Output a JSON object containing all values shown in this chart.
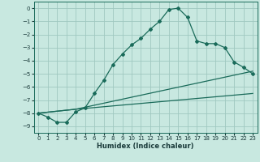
{
  "xlabel": "Humidex (Indice chaleur)",
  "bg_color": "#c8e8e0",
  "grid_color": "#a0c8c0",
  "line_color": "#1a6b5a",
  "xlim": [
    -0.5,
    23.5
  ],
  "ylim": [
    -9.5,
    0.5
  ],
  "xticks": [
    0,
    1,
    2,
    3,
    4,
    5,
    6,
    7,
    8,
    9,
    10,
    11,
    12,
    13,
    14,
    15,
    16,
    17,
    18,
    19,
    20,
    21,
    22,
    23
  ],
  "yticks": [
    0,
    -1,
    -2,
    -3,
    -4,
    -5,
    -6,
    -7,
    -8,
    -9
  ],
  "line1_x": [
    0,
    1,
    2,
    3,
    4,
    5,
    6,
    7,
    8,
    9,
    10,
    11,
    12,
    13,
    14,
    15,
    16,
    17,
    18,
    19,
    20,
    21,
    22,
    23
  ],
  "line1_y": [
    -8.0,
    -8.3,
    -8.7,
    -8.7,
    -7.9,
    -7.6,
    -6.5,
    -5.5,
    -4.3,
    -3.5,
    -2.8,
    -2.3,
    -1.6,
    -1.0,
    -0.1,
    0.0,
    -0.7,
    -2.5,
    -2.7,
    -2.7,
    -3.0,
    -4.1,
    -4.5,
    -5.0
  ],
  "line2_x": [
    0,
    4,
    23
  ],
  "line2_y": [
    -8.0,
    -7.7,
    -4.8
  ],
  "line3_x": [
    0,
    4,
    23
  ],
  "line3_y": [
    -8.0,
    -7.7,
    -6.5
  ]
}
